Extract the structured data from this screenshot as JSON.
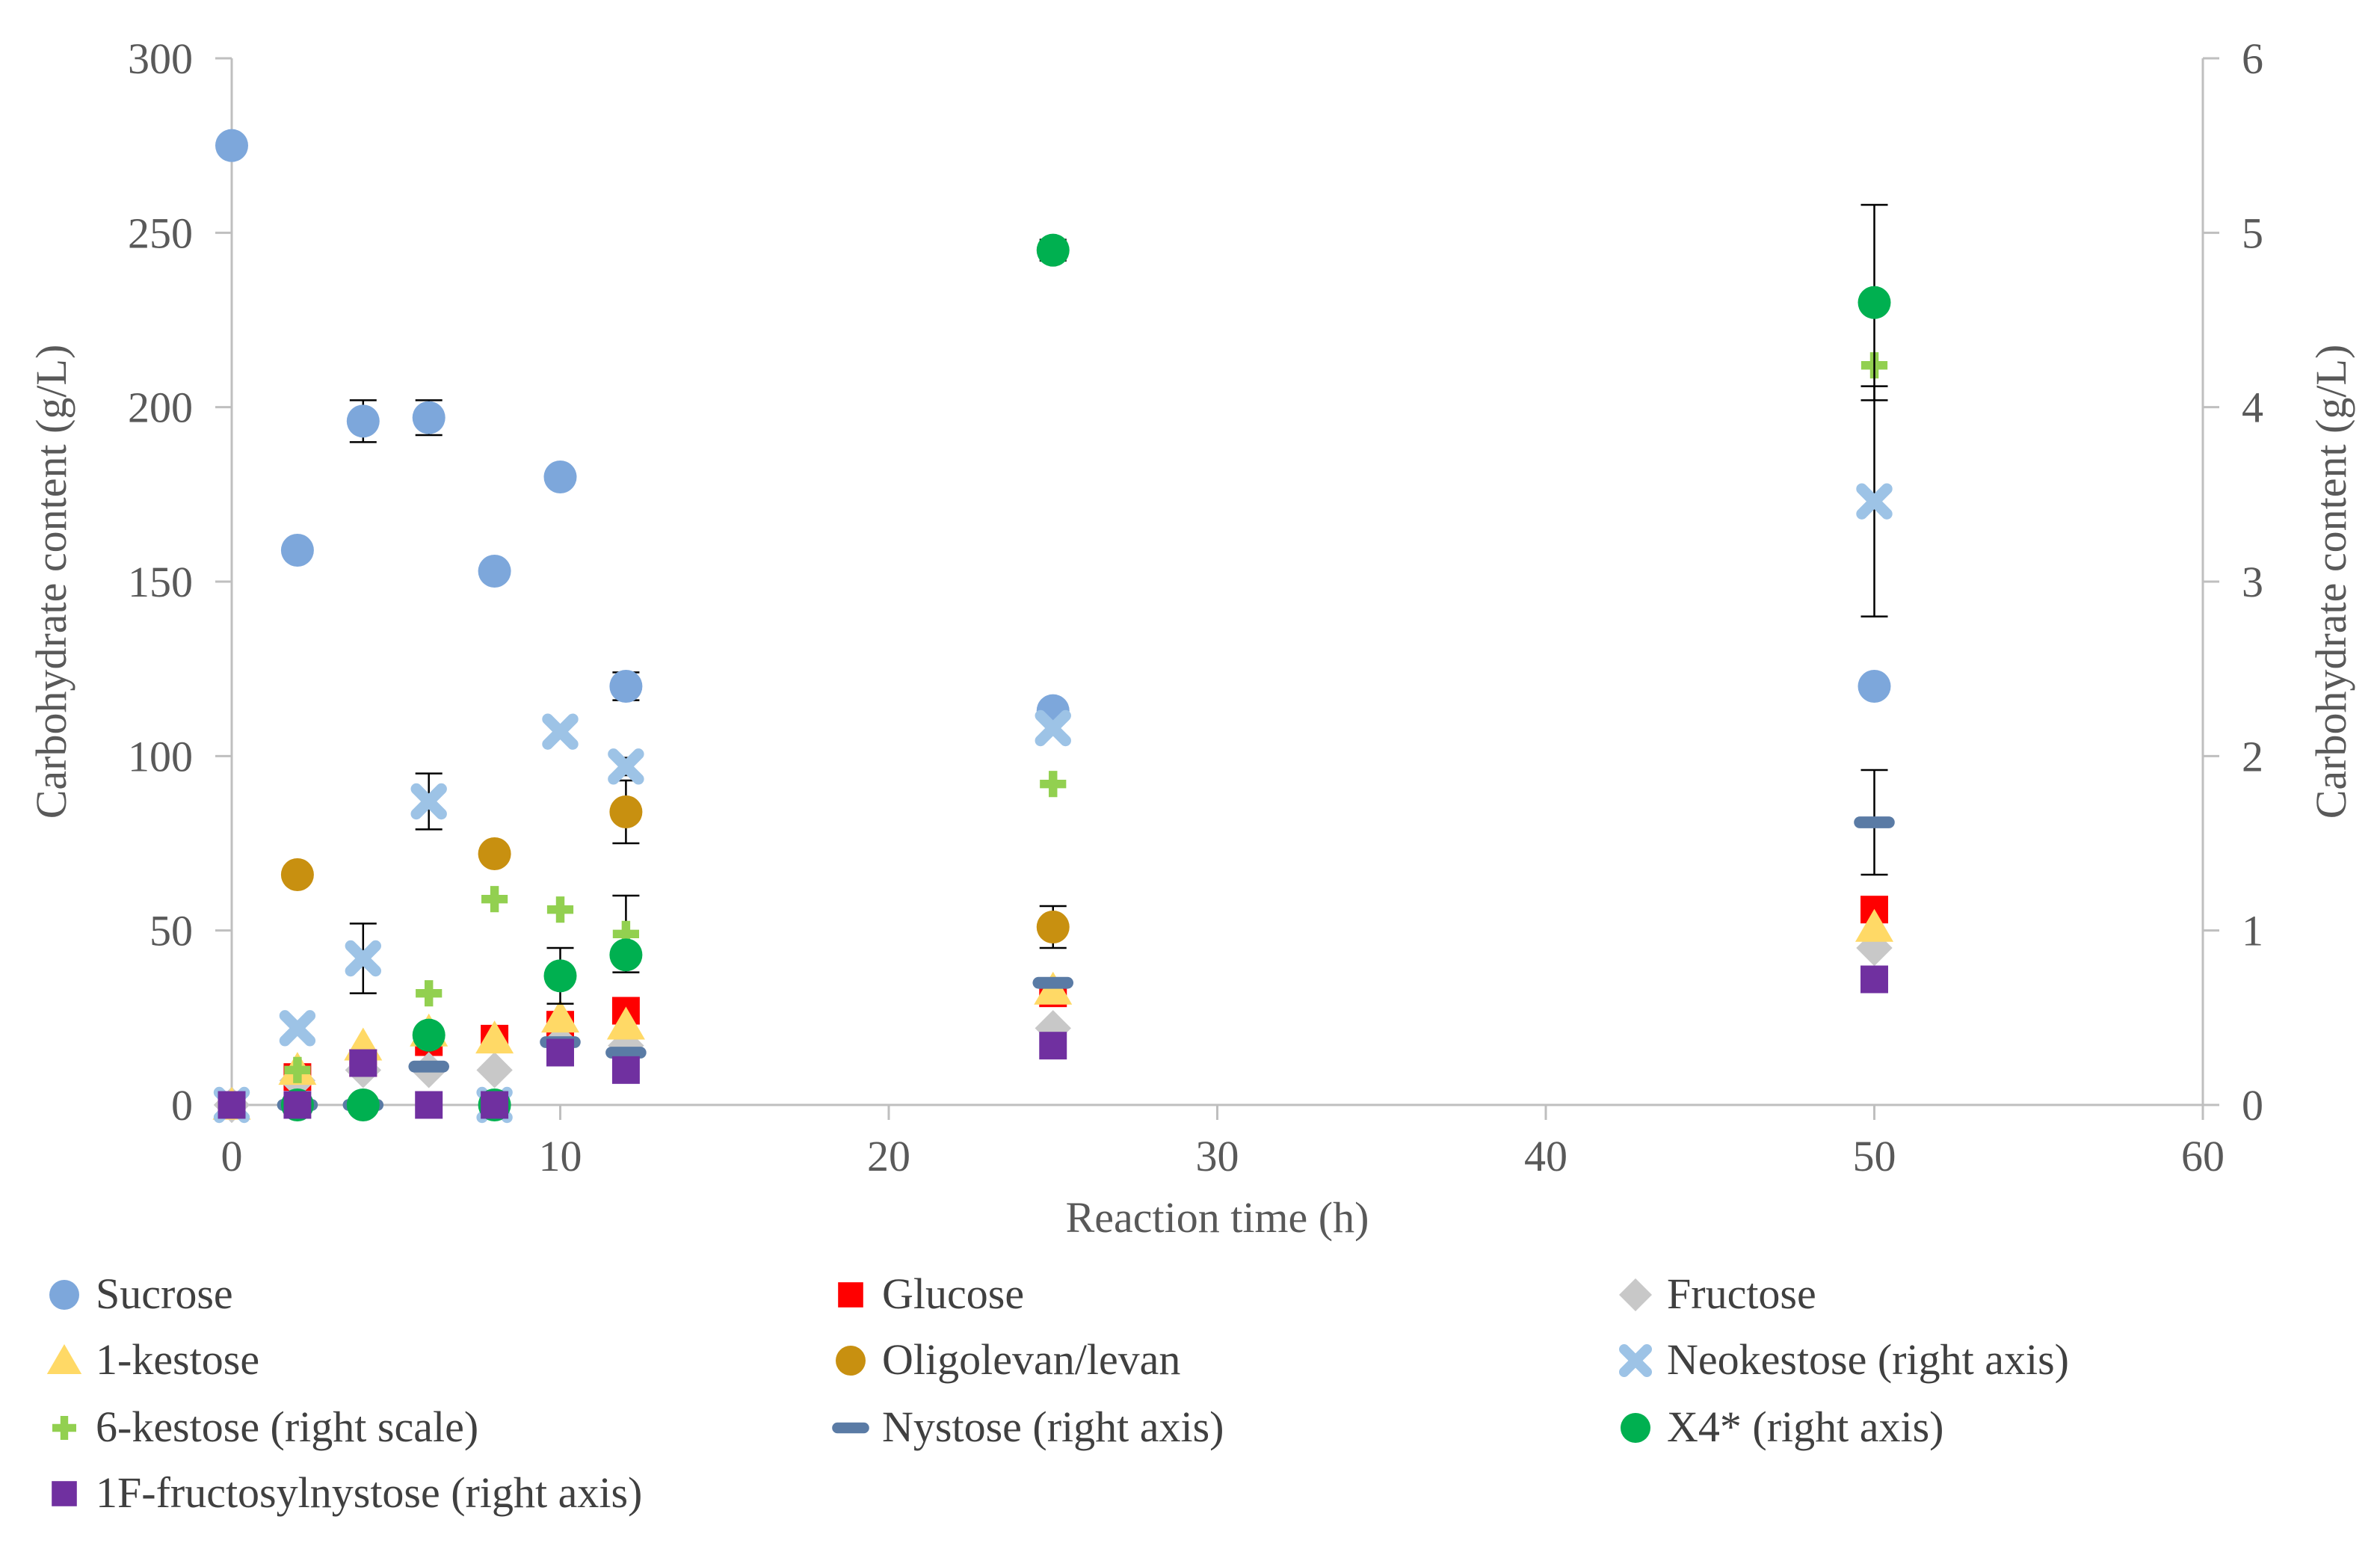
{
  "chart_data": {
    "type": "scatter",
    "title": "",
    "xlabel": "Reaction time (h)",
    "ylabel_left": "Carbohydrate content (g/L)",
    "ylabel_right": "Carbohydrate content (g/L)",
    "xlim": [
      0,
      60
    ],
    "ylim_left": [
      0,
      300
    ],
    "ylim_right": [
      0,
      6
    ],
    "x_ticks": [
      0,
      10,
      20,
      30,
      40,
      50,
      60
    ],
    "x_tick_labels": [
      "0",
      "10",
      "20",
      "30",
      "40",
      "50",
      "60"
    ],
    "y_left_ticks": [
      0,
      50,
      100,
      150,
      200,
      250,
      300
    ],
    "y_left_tick_labels": [
      "0",
      "50",
      "100",
      "150",
      "200",
      "250",
      "300"
    ],
    "y_right_ticks": [
      0,
      1,
      2,
      3,
      4,
      5,
      6
    ],
    "y_right_tick_labels": [
      "0",
      "1",
      "2",
      "3",
      "4",
      "5",
      "6"
    ],
    "grid": false,
    "legend_position": "bottom",
    "series": [
      {
        "name": "Sucrose",
        "axis": "left",
        "color": "#7DA7DB",
        "marker": "circle",
        "x": [
          0,
          2,
          4,
          6,
          8,
          10,
          12,
          25,
          50
        ],
        "y": [
          275,
          159,
          196,
          197,
          153,
          180,
          120,
          113,
          120
        ],
        "err": [
          0,
          1,
          6,
          5,
          1,
          1,
          4,
          2,
          2
        ]
      },
      {
        "name": "Glucose",
        "axis": "left",
        "color": "#FF0000",
        "marker": "square",
        "x": [
          0,
          2,
          4,
          6,
          8,
          10,
          12,
          25,
          50
        ],
        "y": [
          0,
          8,
          12,
          18,
          19,
          23,
          27,
          32,
          56
        ],
        "err": [
          0,
          0,
          0,
          0,
          0,
          0,
          0,
          0,
          0
        ]
      },
      {
        "name": "Fructose",
        "axis": "left",
        "color": "#C8C8C8",
        "marker": "diamond",
        "x": [
          0,
          2,
          4,
          6,
          8,
          10,
          12,
          25,
          50
        ],
        "y": [
          0,
          7,
          10,
          10,
          10,
          18,
          17,
          22,
          45
        ],
        "err": [
          0,
          0,
          0,
          0,
          0,
          0,
          0,
          0,
          0
        ]
      },
      {
        "name": "1-kestose",
        "axis": "left",
        "color": "#FFD966",
        "marker": "triangle",
        "x": [
          0,
          2,
          4,
          6,
          8,
          10,
          12,
          25,
          50
        ],
        "y": [
          0,
          10,
          17,
          21,
          19,
          25,
          23,
          33,
          51
        ],
        "err": [
          0,
          0,
          0,
          0,
          0,
          0,
          0,
          0,
          0
        ]
      },
      {
        "name": "Oligolevan/levan",
        "axis": "left",
        "color": "#C89010",
        "marker": "circle",
        "x": [
          2,
          12,
          8,
          25
        ],
        "y": [
          66,
          84,
          72,
          51
        ],
        "err": [
          0,
          9,
          0,
          6
        ]
      },
      {
        "name": "Neokestose (right axis)",
        "axis": "right",
        "color": "#9DC3E6",
        "marker": "x",
        "x": [
          0,
          2,
          4,
          6,
          8,
          10,
          12,
          25,
          50
        ],
        "y": [
          0,
          0.44,
          0.84,
          1.74,
          0,
          2.14,
          1.94,
          2.16,
          3.46
        ],
        "err": [
          0,
          0,
          0.2,
          0.16,
          0,
          0,
          0.05,
          0,
          0.66
        ]
      },
      {
        "name": "6-kestose (right scale)",
        "axis": "right",
        "color": "#92D050",
        "marker": "plus",
        "x": [
          2,
          6,
          8,
          10,
          12,
          25,
          50
        ],
        "y": [
          0.2,
          0.64,
          1.18,
          1.12,
          0.98,
          1.84,
          4.24
        ],
        "err": [
          0,
          0,
          0,
          0,
          0.22,
          0,
          0
        ]
      },
      {
        "name": "Nystose (right axis)",
        "axis": "right",
        "color": "#5A7BA5",
        "marker": "dash",
        "x": [
          2,
          4,
          6,
          10,
          12,
          25,
          50
        ],
        "y": [
          0,
          0,
          0.22,
          0.36,
          0.3,
          0.7,
          1.62
        ],
        "err": [
          0,
          0,
          0,
          0,
          0,
          0,
          0.3
        ]
      },
      {
        "name": "X4* (right axis)",
        "axis": "right",
        "color": "#00B050",
        "marker": "circle",
        "x": [
          2,
          4,
          6,
          8,
          10,
          12,
          25,
          50
        ],
        "y": [
          0,
          0,
          0.4,
          0,
          0.74,
          0.86,
          4.9,
          4.6
        ],
        "err": [
          0,
          0,
          0,
          0,
          0.16,
          0,
          0.06,
          0.56
        ]
      },
      {
        "name": "1F-fructosylnystose (right axis)",
        "axis": "right",
        "color": "#7030A0",
        "marker": "square",
        "x": [
          0,
          2,
          4,
          6,
          8,
          10,
          12,
          25,
          50
        ],
        "y": [
          0,
          0,
          0.24,
          0,
          0,
          0.3,
          0.2,
          0.34,
          0.72
        ],
        "err": [
          0,
          0,
          0,
          0,
          0,
          0,
          0,
          0,
          0
        ]
      }
    ]
  }
}
